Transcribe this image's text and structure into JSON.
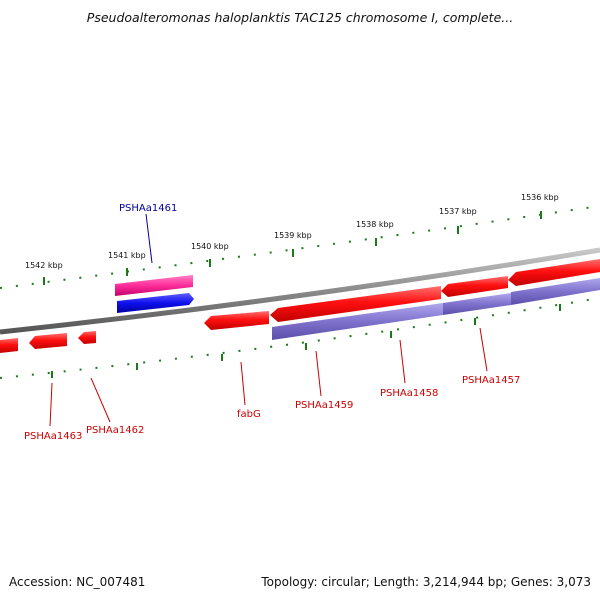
{
  "title": "Pseudoalteromonas haloplanktis TAC125 chromosome I, complete...",
  "footer": {
    "accession": "Accession: NC_007481",
    "summary": "Topology: circular; Length: 3,214,944 bp; Genes: 3,073"
  },
  "colors": {
    "backbone": "#8a8a8a",
    "forward_gene": "#ff1a1a",
    "reverse_gene": "#ff1a1a",
    "cds_feature": "#7e72cc",
    "highlight_pink": "#ff2d9a",
    "highlight_blue": "#1010ee",
    "tick_green": "#1a7a1a",
    "label_red": "#cc0000",
    "label_blue": "#000099"
  },
  "scale": {
    "ticks": [
      {
        "label": "1542 kbp"
      },
      {
        "label": "1541 kbp"
      },
      {
        "label": "1540 kbp"
      },
      {
        "label": "1539 kbp"
      },
      {
        "label": "1538 kbp"
      },
      {
        "label": "1537 kbp"
      },
      {
        "label": "1536 kbp"
      }
    ]
  },
  "genes": [
    {
      "label": "PSHAa1461",
      "color_key": "label_blue"
    },
    {
      "label": "PSHAa1463",
      "color_key": "label_red"
    },
    {
      "label": "PSHAa1462",
      "color_key": "label_red"
    },
    {
      "label": "fabG",
      "color_key": "label_red"
    },
    {
      "label": "PSHAa1459",
      "color_key": "label_red"
    },
    {
      "label": "PSHAa1458",
      "color_key": "label_red"
    },
    {
      "label": "PSHAa1457",
      "color_key": "label_red"
    }
  ]
}
